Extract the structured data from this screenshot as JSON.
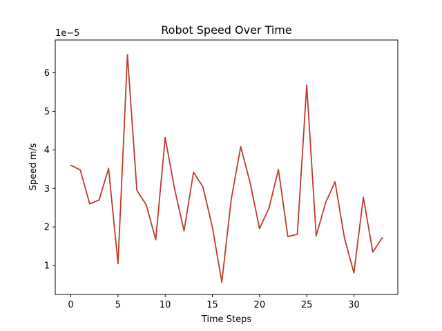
{
  "chart_data": {
    "type": "line",
    "title": "Robot Speed Over Time",
    "xlabel": "Time Steps",
    "ylabel": "Speed m/s",
    "y_offset_label": "1e−5",
    "xlim": [
      -1.65,
      34.65
    ],
    "ylim": [
      0.25,
      6.85
    ],
    "x_ticks": [
      0,
      5,
      10,
      15,
      20,
      25,
      30
    ],
    "x_tick_labels": [
      "0",
      "5",
      "10",
      "15",
      "20",
      "25",
      "30"
    ],
    "y_ticks": [
      1,
      2,
      3,
      4,
      5,
      6
    ],
    "y_tick_labels": [
      "1",
      "2",
      "3",
      "4",
      "5",
      "6"
    ],
    "grid": false,
    "series": [
      {
        "color": "#c0392b",
        "x": [
          0,
          1,
          2,
          3,
          4,
          5,
          6,
          7,
          8,
          9,
          10,
          11,
          12,
          13,
          14,
          15,
          16,
          17,
          18,
          19,
          20,
          21,
          22,
          23,
          24,
          25,
          26,
          27,
          28,
          29,
          30,
          31,
          32,
          33
        ],
        "y": [
          3.6,
          3.48,
          2.6,
          2.7,
          3.52,
          1.05,
          6.47,
          2.95,
          2.57,
          1.67,
          4.32,
          2.98,
          1.9,
          3.42,
          3.04,
          2.0,
          0.57,
          2.72,
          4.08,
          3.15,
          1.96,
          2.49,
          3.49,
          1.75,
          1.81,
          5.68,
          1.77,
          2.63,
          3.17,
          1.71,
          0.81,
          2.77,
          1.35,
          1.72
        ]
      }
    ]
  }
}
